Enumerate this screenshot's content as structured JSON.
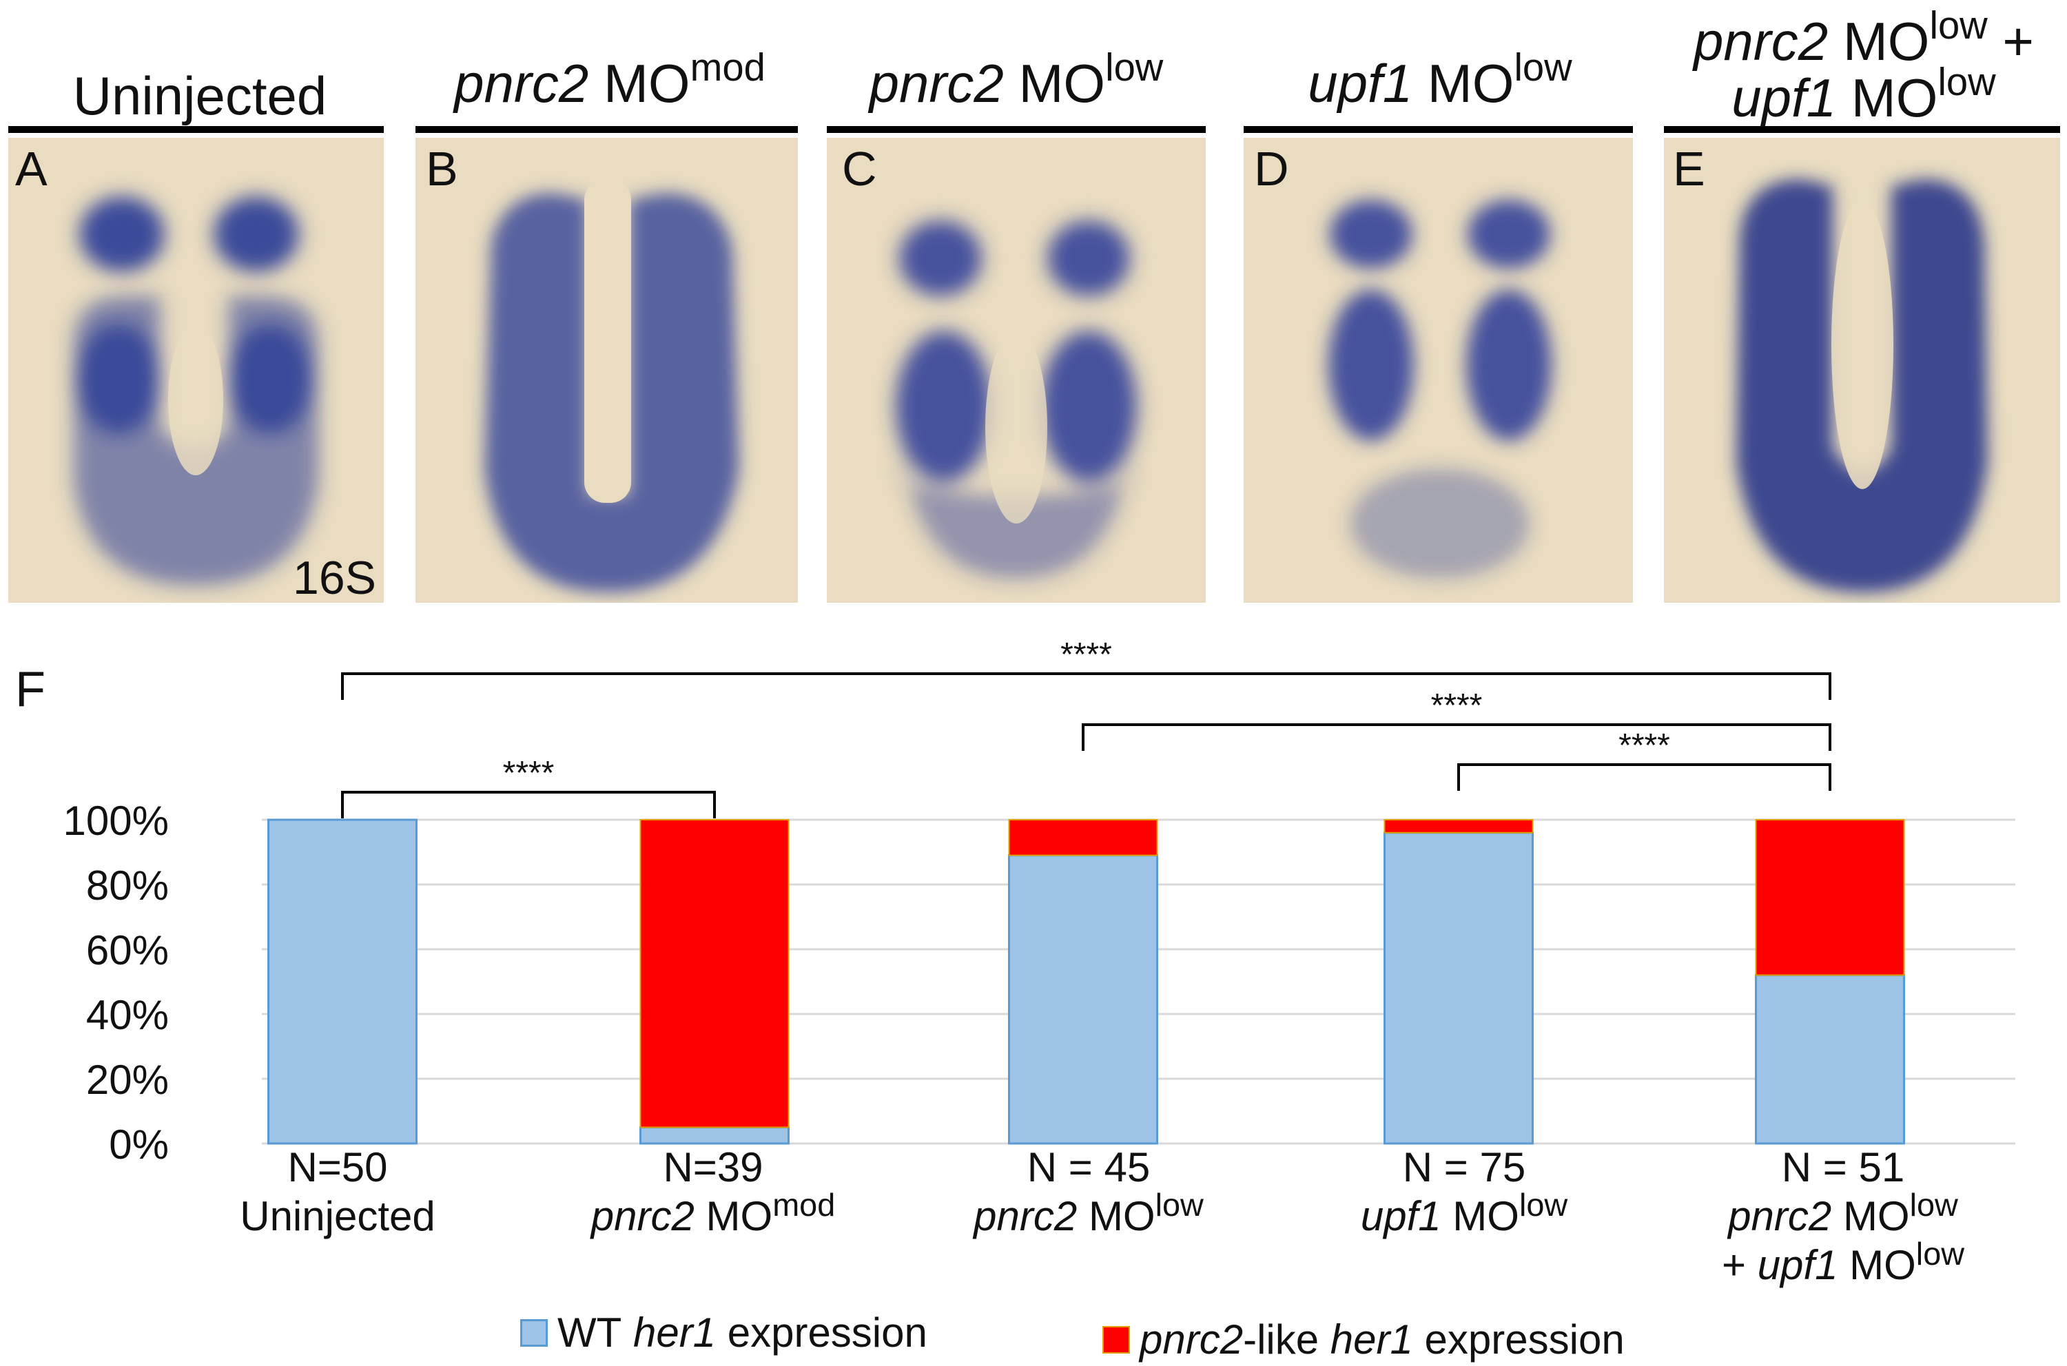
{
  "panels": [
    {
      "letter": "A",
      "title": "Uninjected",
      "stage": "16S"
    },
    {
      "letter": "B",
      "title_gene": "pnrc2",
      "title_mo": "MO",
      "title_sup": "mod"
    },
    {
      "letter": "C",
      "title_gene": "pnrc2",
      "title_mo": "MO",
      "title_sup": "low"
    },
    {
      "letter": "D",
      "title_gene": "upf1",
      "title_mo": "MO",
      "title_sup": "low"
    },
    {
      "letter": "E",
      "title_gene": "pnrc2",
      "title_mo": "MO",
      "title_sup": "low",
      "title_plus": "+",
      "title_gene2": "upf1",
      "title_mo2": "MO",
      "title_sup2": "low"
    }
  ],
  "figure_letter": "F",
  "colors": {
    "wt": "#9dc3e6",
    "wt_edge": "#5b9bd5",
    "pnrc2like": "#ff0000",
    "pnrc2like_edge": "#e0a000",
    "grid": "#d9d9d9",
    "photo_bg": "#e9dcc0",
    "stain": "#1f2f86"
  },
  "chart_data": {
    "type": "bar",
    "stacked": true,
    "categories": [
      "Uninjected",
      "pnrc2 MOmod",
      "pnrc2 MOlow",
      "upf1 MOlow",
      "pnrc2 MOlow + upf1 MOlow"
    ],
    "n_labels": [
      "N=50",
      "N=39",
      "N = 45",
      "N = 75",
      "N = 51"
    ],
    "series": [
      {
        "name": "WT her1 expression",
        "values": [
          100,
          5,
          89,
          96,
          52
        ]
      },
      {
        "name": "pnrc2-like her1 expression",
        "values": [
          0,
          95,
          11,
          4,
          48
        ]
      }
    ],
    "ylim": [
      0,
      100
    ],
    "yticks": [
      "0%",
      "20%",
      "40%",
      "60%",
      "80%",
      "100%"
    ],
    "grid": true,
    "legend_position": "bottom",
    "significance": [
      {
        "from": 0,
        "to": 1,
        "label": "****"
      },
      {
        "from": 0,
        "to": 4,
        "label": "****"
      },
      {
        "from": 2,
        "to": 4,
        "label": "****"
      },
      {
        "from": 3,
        "to": 4,
        "label": "****"
      }
    ]
  },
  "category_labels": [
    {
      "plain": "Uninjected"
    },
    {
      "gene": "pnrc2",
      "mo": "MO",
      "sup": "mod"
    },
    {
      "gene": "pnrc2",
      "mo": "MO",
      "sup": "low"
    },
    {
      "gene": "upf1",
      "mo": "MO",
      "sup": "low"
    },
    {
      "gene": "pnrc2",
      "mo": "MO",
      "sup": "low",
      "line2_plus": "+",
      "gene2": "upf1",
      "mo2": "MO",
      "sup2": "low"
    }
  ],
  "legend": {
    "wt_prefix": "WT",
    "wt_gene": "her1",
    "wt_suffix": "expression",
    "p_gene": "pnrc2",
    "p_mid": "-like",
    "p_gene2": "her1",
    "p_suffix": "expression"
  }
}
